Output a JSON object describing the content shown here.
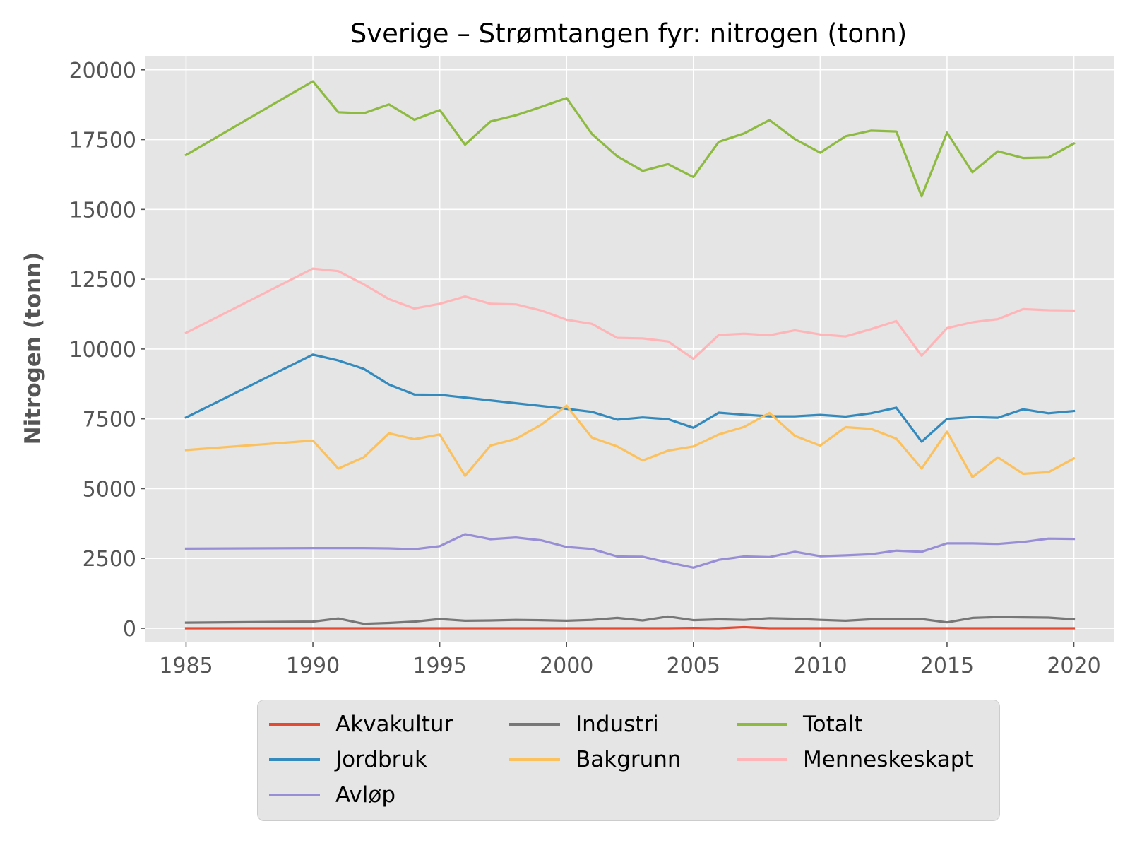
{
  "chart_data": {
    "type": "line",
    "title": "Sverige – Strømtangen fyr: nitrogen (tonn)",
    "xlabel": "",
    "ylabel": "Nitrogen (tonn)",
    "xlim": [
      1983.4,
      2021.6
    ],
    "ylim": [
      -480,
      20500
    ],
    "xticks": [
      1985,
      1990,
      1995,
      2000,
      2005,
      2010,
      2015,
      2020
    ],
    "yticks": [
      0,
      2500,
      5000,
      7500,
      10000,
      12500,
      15000,
      17500,
      20000
    ],
    "grid": true,
    "legend_position": "bottom-center",
    "x": [
      1985,
      1990,
      1991,
      1992,
      1993,
      1994,
      1995,
      1996,
      1997,
      1998,
      1999,
      2000,
      2001,
      2002,
      2003,
      2004,
      2005,
      2006,
      2007,
      2008,
      2009,
      2010,
      2011,
      2012,
      2013,
      2014,
      2015,
      2016,
      2017,
      2018,
      2019,
      2020
    ],
    "series": [
      {
        "name": "Akvakultur",
        "color": "#E24A33",
        "values": [
          0,
          0,
          0,
          0,
          0,
          0,
          0,
          0,
          0,
          0,
          0,
          0,
          0,
          0,
          0,
          0,
          10,
          0,
          40,
          0,
          0,
          0,
          0,
          0,
          0,
          0,
          0,
          0,
          0,
          0,
          0,
          0
        ]
      },
      {
        "name": "Jordbruk",
        "color": "#348ABD",
        "values": [
          7550,
          9800,
          9590,
          9290,
          8730,
          8370,
          8360,
          8260,
          8160,
          8060,
          7960,
          7860,
          7750,
          7470,
          7550,
          7490,
          7180,
          7720,
          7650,
          7590,
          7590,
          7640,
          7580,
          7700,
          7900,
          6680,
          7500,
          7560,
          7540,
          7840,
          7700,
          7780
        ]
      },
      {
        "name": "Avløp",
        "color": "#988ED5",
        "values": [
          2850,
          2870,
          2870,
          2870,
          2860,
          2830,
          2940,
          3370,
          3190,
          3250,
          3150,
          2910,
          2840,
          2570,
          2560,
          2360,
          2170,
          2450,
          2570,
          2550,
          2740,
          2580,
          2610,
          2650,
          2780,
          2740,
          3040,
          3040,
          3020,
          3090,
          3210,
          3200
        ]
      },
      {
        "name": "Industri",
        "color": "#777777",
        "values": [
          200,
          240,
          350,
          160,
          190,
          240,
          330,
          270,
          280,
          300,
          290,
          270,
          300,
          370,
          280,
          420,
          290,
          320,
          300,
          360,
          340,
          300,
          270,
          320,
          320,
          330,
          210,
          370,
          400,
          390,
          380,
          320
        ]
      },
      {
        "name": "Bakgrunn",
        "color": "#FBC15E",
        "values": [
          6380,
          6720,
          5720,
          6120,
          6980,
          6770,
          6940,
          5460,
          6540,
          6780,
          7290,
          7970,
          6830,
          6510,
          6010,
          6360,
          6510,
          6940,
          7210,
          7710,
          6890,
          6540,
          7200,
          7140,
          6790,
          5720,
          7040,
          5410,
          6120,
          5530,
          5590,
          6080
        ]
      },
      {
        "name": "Totalt",
        "color": "#8EBA42",
        "values": [
          16950,
          19590,
          18480,
          18440,
          18760,
          18210,
          18560,
          17320,
          18150,
          18370,
          18670,
          18990,
          17700,
          16900,
          16380,
          16620,
          16160,
          17420,
          17720,
          18200,
          17520,
          17030,
          17620,
          17820,
          17790,
          15470,
          17750,
          16330,
          17080,
          16840,
          16860,
          17360
        ]
      },
      {
        "name": "Menneskeskapt",
        "color": "#FFB5B8",
        "values": [
          10580,
          12880,
          12790,
          12320,
          11790,
          11450,
          11620,
          11880,
          11620,
          11600,
          11380,
          11050,
          10900,
          10400,
          10380,
          10270,
          9650,
          10500,
          10550,
          10490,
          10670,
          10520,
          10450,
          10710,
          11000,
          9760,
          10750,
          10960,
          11070,
          11430,
          11390,
          11380
        ]
      }
    ]
  }
}
